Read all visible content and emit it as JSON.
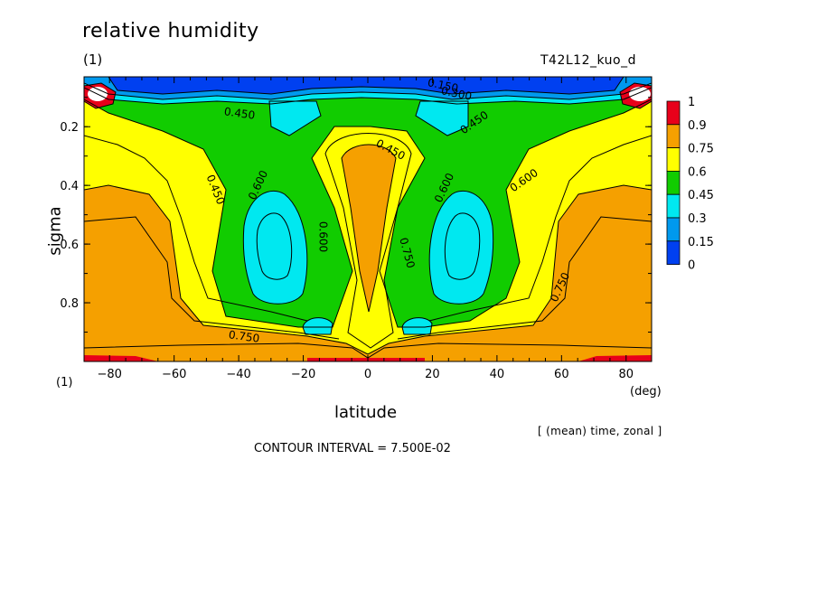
{
  "figure": {
    "title": "relative humidity",
    "panel_label": "(1)",
    "run_label": "T42L12_kuo_d",
    "unit_label": "(1)",
    "averaging_note": "[ (mean) time, zonal ]",
    "contour_note": "CONTOUR INTERVAL = 7.500E-02"
  },
  "chart_data": {
    "type": "heatmap",
    "title": "relative humidity",
    "xlabel": "latitude",
    "ylabel": "sigma",
    "x_unit": "(deg)",
    "xlim": [
      -87.9,
      87.9
    ],
    "ylim": [
      0.03,
      1.0
    ],
    "y_inverted": true,
    "x_ticks": [
      "-80",
      "-60",
      "-40",
      "-20",
      "0",
      "20",
      "40",
      "60",
      "80"
    ],
    "y_ticks": [
      "0.2",
      "0.4",
      "0.6",
      "0.8"
    ],
    "contour_interval": 0.075,
    "contour_labels": [
      "0.150",
      "0.300",
      "0.450",
      "0.450",
      "0.450",
      "0.450",
      "0.600",
      "0.600",
      "0.600",
      "0.600",
      "0.750",
      "0.750",
      "0.750"
    ],
    "colorbar": {
      "levels": [
        "1",
        "0.9",
        "0.75",
        "0.6",
        "0.45",
        "0.3",
        "0.15",
        "0"
      ],
      "colors": [
        "#e8001a",
        "#f5a000",
        "#ffff00",
        "#11cc00",
        "#00e8f0",
        "#0099ee",
        "#0040f0"
      ]
    },
    "fields": {
      "upper_dry_layer": "sigma < 0.1, values 0-0.3",
      "subtropical_minima": "about 0.35 near latitude +/-30, sigma 0.4-0.8",
      "equatorial_maximum": "0.75-0.9 near latitude 0, sigma 0.25-0.85",
      "polar_low_levels": "0.75-0.9 poleward of 50 deg, sigma > 0.45",
      "surface_maxima": "0.9-1 near latitude +/-85, sigma 0.08-0.12 and 0.98"
    }
  }
}
